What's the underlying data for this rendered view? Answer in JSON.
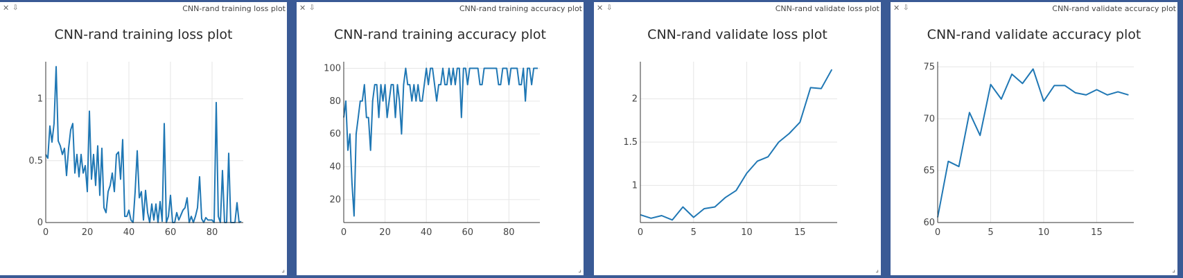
{
  "panels": [
    {
      "window_title": "CNN-rand training loss plot",
      "chart_data": {
        "type": "line",
        "title": "CNN-rand training loss plot",
        "xlabel": "",
        "ylabel": "",
        "xlim": [
          0,
          95
        ],
        "ylim": [
          0,
          1.3
        ],
        "xticks": [
          0,
          20,
          40,
          60,
          80
        ],
        "yticks": [
          0,
          0.5,
          1
        ],
        "grid": true,
        "series": [
          {
            "color": "#1f77b4",
            "x": [
              0,
              1,
              2,
              3,
              4,
              5,
              6,
              7,
              8,
              9,
              10,
              11,
              12,
              13,
              14,
              15,
              16,
              17,
              18,
              19,
              20,
              21,
              22,
              23,
              24,
              25,
              26,
              27,
              28,
              29,
              30,
              31,
              32,
              33,
              34,
              35,
              36,
              37,
              38,
              39,
              40,
              41,
              42,
              43,
              44,
              45,
              46,
              47,
              48,
              49,
              50,
              51,
              52,
              53,
              54,
              55,
              56,
              57,
              58,
              59,
              60,
              61,
              62,
              63,
              64,
              65,
              66,
              67,
              68,
              69,
              70,
              71,
              72,
              73,
              74,
              75,
              76,
              77,
              78,
              79,
              80,
              81,
              82,
              83,
              84,
              85,
              86,
              87,
              88,
              89,
              90,
              91,
              92,
              93,
              94
            ],
            "y": [
              0.55,
              0.52,
              0.78,
              0.65,
              0.8,
              1.26,
              0.66,
              0.62,
              0.55,
              0.6,
              0.38,
              0.6,
              0.75,
              0.8,
              0.4,
              0.55,
              0.37,
              0.55,
              0.4,
              0.46,
              0.25,
              0.9,
              0.35,
              0.55,
              0.3,
              0.62,
              0.22,
              0.6,
              0.12,
              0.08,
              0.25,
              0.3,
              0.4,
              0.25,
              0.55,
              0.57,
              0.35,
              0.67,
              0.05,
              0.05,
              0.1,
              0.02,
              0.0,
              0.25,
              0.58,
              0.2,
              0.25,
              0.02,
              0.26,
              0.08,
              0.0,
              0.15,
              0.02,
              0.15,
              0.0,
              0.17,
              0.01,
              0.8,
              0.0,
              0.05,
              0.22,
              0.0,
              0.0,
              0.08,
              0.02,
              0.06,
              0.1,
              0.12,
              0.2,
              0.0,
              0.05,
              0.0,
              0.05,
              0.12,
              0.37,
              0.03,
              0.0,
              0.04,
              0.02,
              0.02,
              0.02,
              0.0,
              0.97,
              0.05,
              0.0,
              0.42,
              0.0,
              0.0,
              0.56,
              0.0,
              0.0,
              0.0,
              0.16,
              0.0,
              0.01
            ]
          }
        ]
      }
    },
    {
      "window_title": "CNN-rand training accuracy plot",
      "chart_data": {
        "type": "line",
        "title": "CNN-rand training accuracy plot",
        "xlabel": "",
        "ylabel": "",
        "xlim": [
          0,
          95
        ],
        "ylim": [
          6,
          104
        ],
        "xticks": [
          0,
          20,
          40,
          60,
          80
        ],
        "yticks": [
          20,
          40,
          60,
          80,
          100
        ],
        "grid": true,
        "series": [
          {
            "color": "#1f77b4",
            "x": [
              0,
              1,
              2,
              3,
              4,
              5,
              6,
              7,
              8,
              9,
              10,
              11,
              12,
              13,
              14,
              15,
              16,
              17,
              18,
              19,
              20,
              21,
              22,
              23,
              24,
              25,
              26,
              27,
              28,
              29,
              30,
              31,
              32,
              33,
              34,
              35,
              36,
              37,
              38,
              39,
              40,
              41,
              42,
              43,
              44,
              45,
              46,
              47,
              48,
              49,
              50,
              51,
              52,
              53,
              54,
              55,
              56,
              57,
              58,
              59,
              60,
              61,
              62,
              63,
              64,
              65,
              66,
              67,
              68,
              69,
              70,
              71,
              72,
              73,
              74,
              75,
              76,
              77,
              78,
              79,
              80,
              81,
              82,
              83,
              84,
              85,
              86,
              87,
              88,
              89,
              90,
              91,
              92,
              93,
              94
            ],
            "y": [
              70,
              80,
              50,
              60,
              30,
              10,
              60,
              70,
              80,
              80,
              90,
              70,
              70,
              50,
              80,
              90,
              90,
              70,
              90,
              80,
              90,
              70,
              80,
              90,
              90,
              70,
              90,
              80,
              60,
              90,
              100,
              90,
              90,
              80,
              90,
              80,
              90,
              80,
              80,
              90,
              100,
              90,
              100,
              100,
              90,
              80,
              90,
              90,
              100,
              90,
              90,
              100,
              90,
              100,
              90,
              100,
              100,
              70,
              100,
              100,
              90,
              100,
              100,
              100,
              100,
              100,
              90,
              90,
              100,
              100,
              100,
              100,
              100,
              100,
              100,
              90,
              90,
              100,
              100,
              100,
              90,
              100,
              100,
              100,
              100,
              90,
              90,
              100,
              80,
              100,
              100,
              90,
              100,
              100,
              100
            ]
          }
        ]
      }
    },
    {
      "window_title": "CNN-rand validate loss plot",
      "chart_data": {
        "type": "line",
        "title": "CNN-rand validate loss plot",
        "xlabel": "",
        "ylabel": "",
        "xlim": [
          0,
          18.5
        ],
        "ylim": [
          0.57,
          2.43
        ],
        "xticks": [
          0,
          5,
          10,
          15
        ],
        "yticks": [
          1,
          1.5,
          2
        ],
        "grid": true,
        "series": [
          {
            "color": "#1f77b4",
            "x": [
              0,
              1,
              2,
              3,
              4,
              5,
              6,
              7,
              8,
              9,
              10,
              11,
              12,
              13,
              14,
              15,
              16,
              17,
              18
            ],
            "y": [
              0.66,
              0.62,
              0.65,
              0.6,
              0.75,
              0.63,
              0.73,
              0.75,
              0.86,
              0.94,
              1.14,
              1.28,
              1.33,
              1.5,
              1.6,
              1.73,
              2.13,
              2.12,
              2.34
            ]
          }
        ]
      }
    },
    {
      "window_title": "CNN-rand validate accuracy plot",
      "chart_data": {
        "type": "line",
        "title": "CNN-rand validate accuracy plot",
        "xlabel": "",
        "ylabel": "",
        "xlim": [
          0,
          18.5
        ],
        "ylim": [
          60,
          75.5
        ],
        "xticks": [
          0,
          5,
          10,
          15
        ],
        "yticks": [
          60,
          65,
          70,
          75
        ],
        "grid": true,
        "series": [
          {
            "color": "#1f77b4",
            "x": [
              0,
              1,
              2,
              3,
              4,
              5,
              6,
              7,
              8,
              9,
              10,
              11,
              12,
              13,
              14,
              15,
              16,
              17,
              18
            ],
            "y": [
              60.5,
              65.9,
              65.4,
              70.6,
              68.4,
              73.3,
              71.9,
              74.3,
              73.4,
              74.8,
              71.7,
              73.2,
              73.2,
              72.5,
              72.3,
              72.8,
              72.3,
              72.6,
              72.3
            ]
          }
        ]
      }
    }
  ]
}
